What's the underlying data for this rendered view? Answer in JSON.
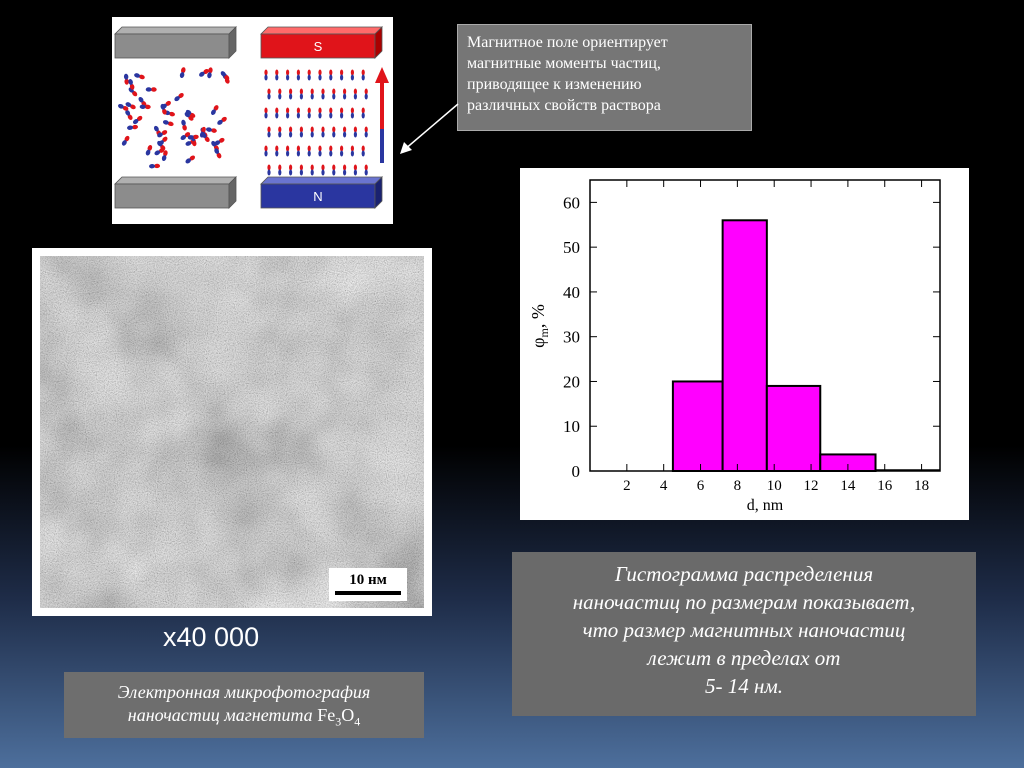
{
  "callout": {
    "lines": [
      "Магнитное поле ориентирует",
      "магнитные моменты частиц,",
      "приводящее к изменению",
      "различных свойств раствора"
    ]
  },
  "magnets": {
    "south_label": "S",
    "north_label": "N",
    "colors": {
      "south": "#e0141a",
      "north": "#2a36a0",
      "plate": "#8c8c8c"
    }
  },
  "micrograph": {
    "scale_label": "10 нм"
  },
  "magnification": "x40 000",
  "caption_left": {
    "line1": "Электронная микрофотография",
    "line2_prefix": "наночастиц магнетита ",
    "formula": {
      "fe": "Fe",
      "sub1": "3",
      "o": "O",
      "sub2": "4"
    }
  },
  "caption_right": {
    "lines": [
      "Гистограмма распределения",
      "наночастиц по размерам показывает,",
      "что размер магнитных наночастиц",
      "лежит в пределах от",
      "5- 14 нм."
    ]
  },
  "chart_data": {
    "type": "bar",
    "xlabel": "d, nm",
    "ylabel_main": "φ",
    "ylabel_sub": "m",
    "ylabel_unit": ", %",
    "xlim": [
      0,
      19
    ],
    "ylim": [
      0,
      65
    ],
    "xticks": [
      2,
      4,
      6,
      8,
      10,
      12,
      14,
      16,
      18
    ],
    "yticks": [
      0,
      10,
      20,
      30,
      40,
      50,
      60
    ],
    "bins": [
      {
        "x0": 4.5,
        "x1": 7.2,
        "value": 20
      },
      {
        "x0": 7.2,
        "x1": 9.6,
        "value": 56
      },
      {
        "x0": 9.6,
        "x1": 12.5,
        "value": 19
      },
      {
        "x0": 12.5,
        "x1": 15.5,
        "value": 3.7
      }
    ],
    "bar_color": "#ff00ff",
    "grid": false
  }
}
